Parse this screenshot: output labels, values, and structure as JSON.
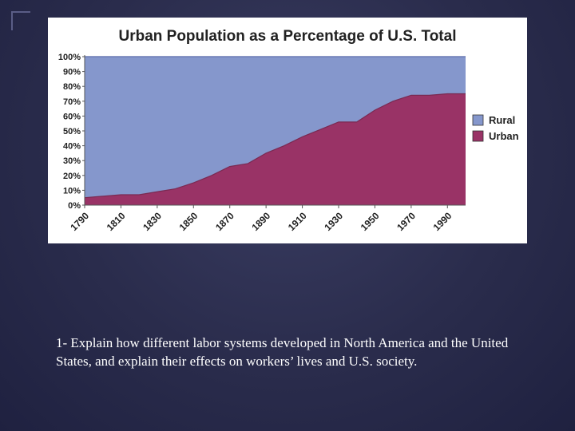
{
  "question_text": "1- Explain how different labor systems developed in North America and the United States, and explain their effects on workers’ lives and U.S. society.",
  "chart_data": {
    "type": "area",
    "title": "Urban Population as a Percentage of U.S. Total",
    "xlabel": "",
    "ylabel": "",
    "x": [
      1790,
      1800,
      1810,
      1820,
      1830,
      1840,
      1850,
      1860,
      1870,
      1880,
      1890,
      1900,
      1910,
      1920,
      1930,
      1940,
      1950,
      1960,
      1970,
      1980,
      1990,
      2000
    ],
    "x_tick_labels": [
      "1790",
      "1810",
      "1830",
      "1850",
      "1870",
      "1890",
      "1910",
      "1930",
      "1950",
      "1970",
      "1990"
    ],
    "y_tick_labels": [
      "0%",
      "10%",
      "20%",
      "30%",
      "40%",
      "50%",
      "60%",
      "70%",
      "80%",
      "90%",
      "100%"
    ],
    "ylim": [
      0,
      100
    ],
    "xlim": [
      1790,
      2000
    ],
    "stacked": true,
    "series": [
      {
        "name": "Urban",
        "color": "#993366",
        "values": [
          5,
          6,
          7,
          7,
          9,
          11,
          15,
          20,
          26,
          28,
          35,
          40,
          46,
          51,
          56,
          56,
          64,
          70,
          74,
          74,
          75,
          75
        ]
      },
      {
        "name": "Rural",
        "color": "#8597cc",
        "values": [
          95,
          94,
          93,
          93,
          91,
          89,
          85,
          80,
          74,
          72,
          65,
          60,
          54,
          49,
          44,
          44,
          36,
          30,
          26,
          26,
          25,
          25
        ]
      }
    ],
    "legend": {
      "position": "right",
      "entries": [
        "Rural",
        "Urban"
      ]
    },
    "grid": false
  }
}
